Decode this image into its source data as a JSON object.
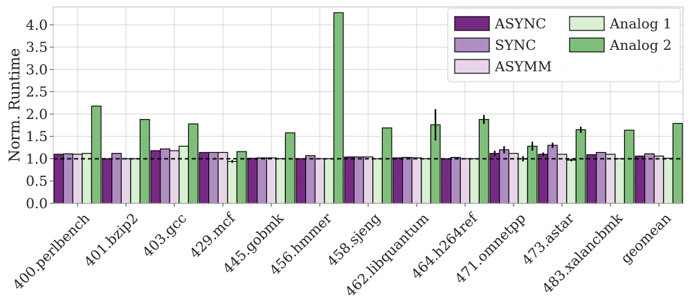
{
  "chart_data": {
    "type": "bar",
    "title": "",
    "xlabel": "",
    "ylabel": "Norm. Runtime",
    "ylim": [
      0,
      4.4
    ],
    "yticks": [
      0.0,
      0.5,
      1.0,
      1.5,
      2.0,
      2.5,
      3.0,
      3.5,
      4.0
    ],
    "ytick_labels": [
      "0.0",
      "0.5",
      "1.0",
      "1.5",
      "2.0",
      "2.5",
      "3.0",
      "3.5",
      "4.0"
    ],
    "grid": true,
    "reference_line": 1.0,
    "legend_position": "top-right",
    "categories": [
      "400.perlbench",
      "401.bzip2",
      "403.gcc",
      "429.mcf",
      "445.gobmk",
      "456.hmmer",
      "458.sjeng",
      "462.libquantum",
      "464.h264ref",
      "471.omnetpp",
      "473.astar",
      "483.xalancbmk",
      "geomean"
    ],
    "series": [
      {
        "name": "ASYNC",
        "color": "#762a83",
        "values": [
          1.1,
          1.0,
          1.18,
          1.14,
          1.01,
          1.0,
          1.04,
          1.02,
          1.0,
          1.12,
          1.1,
          1.09,
          1.06
        ],
        "errors": [
          0,
          0,
          0,
          0,
          0,
          0,
          0,
          0,
          0,
          0.06,
          0.04,
          0,
          0
        ]
      },
      {
        "name": "SYNC",
        "color": "#af8dc3",
        "values": [
          1.11,
          1.12,
          1.22,
          1.14,
          1.02,
          1.07,
          1.04,
          1.03,
          1.03,
          1.2,
          1.3,
          1.14,
          1.11
        ],
        "errors": [
          0,
          0,
          0,
          0,
          0,
          0,
          0,
          0,
          0,
          0.08,
          0.06,
          0,
          0
        ]
      },
      {
        "name": "ASYMM",
        "color": "#e7d4e8",
        "values": [
          1.1,
          1.0,
          1.18,
          1.14,
          1.02,
          1.0,
          1.04,
          1.02,
          1.0,
          1.12,
          1.1,
          1.1,
          1.06
        ],
        "errors": [
          0,
          0,
          0,
          0,
          0,
          0,
          0,
          0,
          0,
          0,
          0,
          0,
          0
        ]
      },
      {
        "name": "Analog 1",
        "color": "#d9f0d3",
        "values": [
          1.12,
          1.0,
          1.28,
          0.94,
          1.0,
          1.0,
          1.0,
          1.0,
          1.0,
          1.0,
          0.97,
          1.0,
          1.01
        ],
        "errors": [
          0,
          0,
          0,
          0.03,
          0,
          0,
          0,
          0,
          0,
          0.06,
          0.03,
          0,
          0
        ]
      },
      {
        "name": "Analog 2",
        "color": "#7fbf7b",
        "values": [
          2.18,
          1.88,
          1.78,
          1.16,
          1.58,
          4.27,
          1.69,
          1.76,
          1.88,
          1.28,
          1.65,
          1.64,
          1.79
        ],
        "errors": [
          0,
          0,
          0,
          0,
          0,
          0,
          0,
          0.35,
          0.1,
          0.1,
          0.07,
          0,
          0
        ]
      }
    ]
  }
}
